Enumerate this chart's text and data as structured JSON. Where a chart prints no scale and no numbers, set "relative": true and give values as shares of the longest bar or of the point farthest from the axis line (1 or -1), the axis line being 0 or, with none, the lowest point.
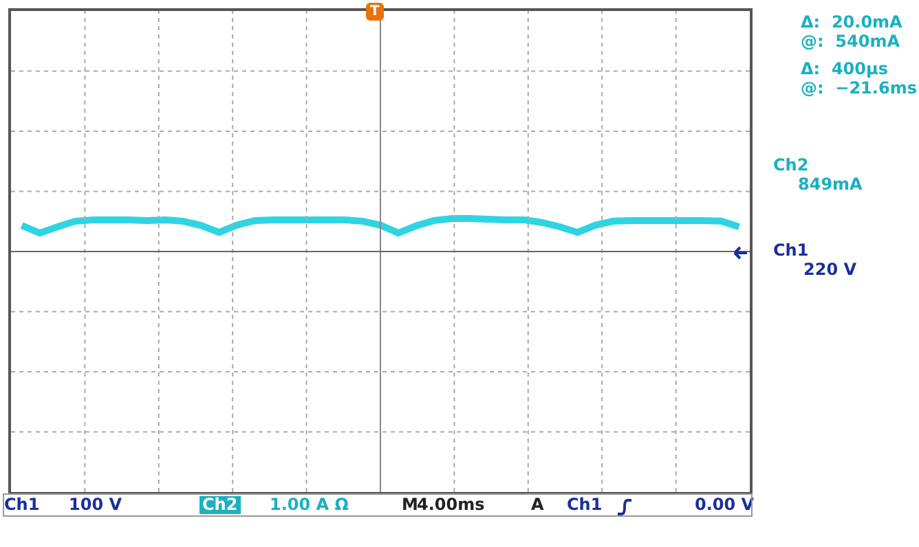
{
  "chart_data": {
    "type": "line",
    "relative": true,
    "grid": true,
    "marker": "none",
    "line_style": "solid",
    "categories": [
      null,
      null,
      null,
      null,
      null,
      null,
      null,
      null,
      null,
      null,
      null,
      null,
      null,
      null,
      null,
      null,
      null,
      null,
      null,
      null,
      null,
      null,
      null,
      null,
      null,
      null,
      null,
      null,
      null,
      null,
      null,
      null,
      null,
      null,
      null,
      null,
      null,
      null,
      null,
      null,
      null
    ],
    "series": [
      {
        "color": "#2fd4e2",
        "values": [
          0.79,
          0.56,
          0.75,
          0.92,
          0.96,
          0.96,
          0.96,
          0.94,
          0.96,
          0.92,
          0.79,
          0.58,
          0.8,
          0.94,
          0.96,
          0.96,
          0.96,
          0.96,
          0.96,
          0.92,
          0.8,
          0.56,
          0.78,
          0.94,
          1,
          1,
          0.98,
          0.96,
          0.96,
          0.88,
          0.75,
          0.58,
          0.8,
          0.92,
          0.94,
          0.94,
          0.94,
          0.94,
          0.94,
          0.92,
          0.75
        ]
      }
    ],
    "annotations": [
      "Δ:  20.0mA",
      "@:  540mA",
      "Δ:  400μs",
      "@:  −21.6ms",
      "Ch2",
      "849mA",
      "Ch1",
      "220 V",
      "T",
      "Ch1",
      "100 V",
      "Ch2",
      "1.00 A Ω",
      "M",
      "4.00ms",
      "A",
      "Ch1",
      "0.00 V"
    ]
  }
}
